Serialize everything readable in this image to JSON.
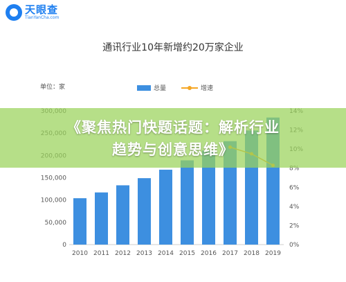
{
  "logo": {
    "name": "天眼查",
    "domain": "TianYanCha.com"
  },
  "headline": {
    "line1": "《聚焦热门快题话题：解析行业",
    "line2": "趋势与创意思维》"
  },
  "chart_data": {
    "type": "bar+line",
    "title": "通讯行业10年新增约20万家企业",
    "unit_label": "单位：家",
    "categories": [
      "2010",
      "2011",
      "2012",
      "2013",
      "2014",
      "2015",
      "2016",
      "2017",
      "2018",
      "2019"
    ],
    "series": [
      {
        "name": "总量",
        "type": "bar",
        "axis": "left",
        "color": "#3d8fe0",
        "values": [
          104000,
          117000,
          133000,
          149000,
          168000,
          189000,
          211000,
          232000,
          256000,
          285000
        ]
      },
      {
        "name": "增速",
        "type": "line",
        "axis": "right",
        "color": "#f5a623",
        "values": [
          null,
          null,
          null,
          null,
          null,
          null,
          null,
          10.2,
          9.5,
          8.3
        ]
      }
    ],
    "y_left": {
      "min": 0,
      "max": 300000,
      "ticks": [
        "0",
        "50,000",
        "100,000",
        "150,000",
        "200,000",
        "250,000",
        "300,000"
      ]
    },
    "y_right": {
      "min": 0,
      "max": 14,
      "ticks": [
        "0%",
        "2%",
        "4%",
        "6%",
        "8%",
        "10%",
        "12%",
        "14%"
      ]
    },
    "legend_position": "top",
    "grid": false
  }
}
